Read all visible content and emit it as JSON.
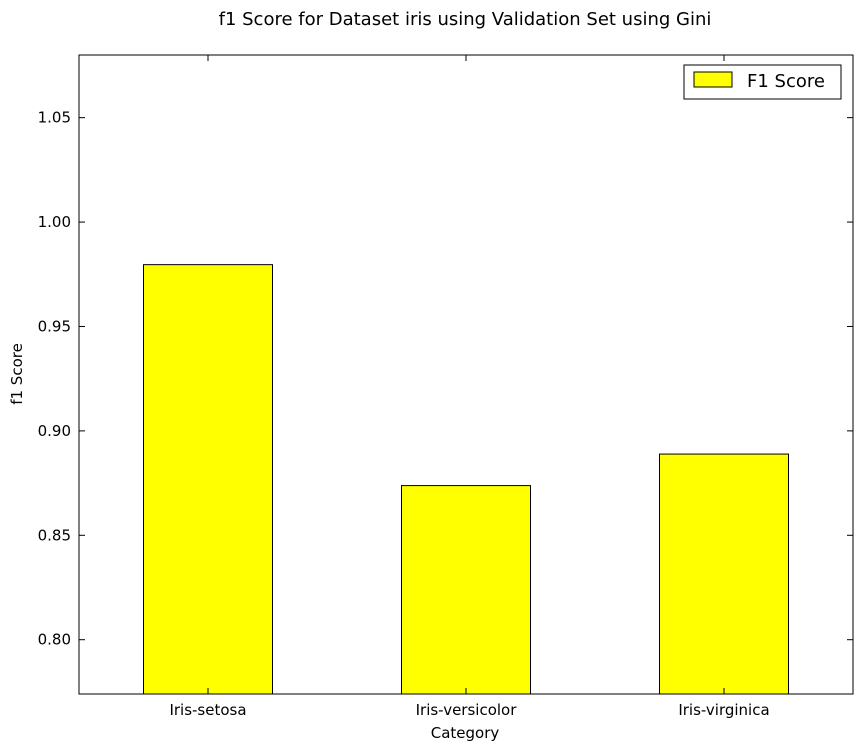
{
  "chart_data": {
    "type": "bar",
    "title": "f1 Score for Dataset iris using Validation Set using Gini",
    "xlabel": "Category",
    "ylabel": "f1 Score",
    "categories": [
      "Iris-setosa",
      "Iris-versicolor",
      "Iris-virginica"
    ],
    "series": [
      {
        "name": "F1 Score",
        "values": [
          0.9796,
          0.8738,
          0.8889
        ],
        "color": "#ffff00"
      }
    ],
    "ylim": [
      0.774,
      1.08
    ],
    "yticks": [
      0.8,
      0.85,
      0.9,
      0.95,
      1.0,
      1.05
    ],
    "ytick_labels": [
      "0.80",
      "0.85",
      "0.90",
      "0.95",
      "1.00",
      "1.05"
    ],
    "grid": false,
    "legend_position": "top-right"
  }
}
